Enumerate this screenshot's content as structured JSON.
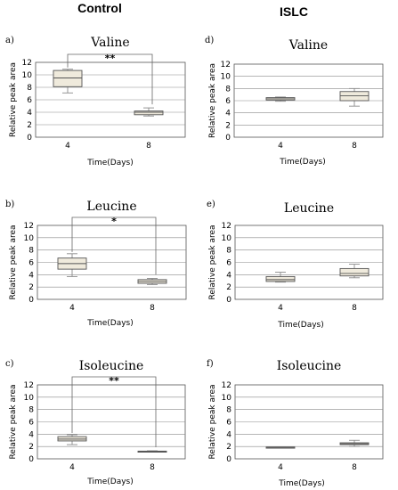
{
  "columns": [
    "Control",
    "ISLC"
  ],
  "chart_data": [
    {
      "type": "box",
      "panel": "a)",
      "title": "Valine",
      "ylabel": "Relative peak area",
      "xlabel": "Time(Days)",
      "ylim": [
        0,
        12
      ],
      "yticks": [
        0,
        2,
        4,
        6,
        8,
        10,
        12
      ],
      "categories": [
        "4",
        "8"
      ],
      "boxes": [
        {
          "min": 7.1,
          "q1": 8.1,
          "median": 9.5,
          "q3": 10.7,
          "max": 10.9
        },
        {
          "min": 3.4,
          "q1": 3.6,
          "median": 4.0,
          "q3": 4.2,
          "max": 4.7
        }
      ],
      "significance": "**"
    },
    {
      "type": "box",
      "panel": "d)",
      "title": "Valine",
      "ylabel": "Relative peak area",
      "xlabel": "Time(Days)",
      "ylim": [
        0,
        12
      ],
      "yticks": [
        0,
        2,
        4,
        6,
        8,
        10,
        12
      ],
      "categories": [
        "4",
        "8"
      ],
      "boxes": [
        {
          "min": 5.9,
          "q1": 6.1,
          "median": 6.3,
          "q3": 6.5,
          "max": 6.6
        },
        {
          "min": 5.1,
          "q1": 6.0,
          "median": 6.8,
          "q3": 7.5,
          "max": 8.0
        }
      ]
    },
    {
      "type": "box",
      "panel": "b)",
      "title": "Leucine",
      "ylabel": "Relative peak area",
      "xlabel": "Time(Days)",
      "ylim": [
        0,
        12
      ],
      "yticks": [
        0,
        2,
        4,
        6,
        8,
        10,
        12
      ],
      "categories": [
        "4",
        "8"
      ],
      "boxes": [
        {
          "min": 3.7,
          "q1": 4.9,
          "median": 5.8,
          "q3": 6.7,
          "max": 7.4
        },
        {
          "min": 2.4,
          "q1": 2.6,
          "median": 2.9,
          "q3": 3.2,
          "max": 3.4
        }
      ],
      "significance": "*"
    },
    {
      "type": "box",
      "panel": "e)",
      "title": "Leucine",
      "ylabel": "Relative peak area",
      "xlabel": "Time(Days)",
      "ylim": [
        0,
        12
      ],
      "yticks": [
        0,
        2,
        4,
        6,
        8,
        10,
        12
      ],
      "categories": [
        "4",
        "8"
      ],
      "boxes": [
        {
          "min": 2.8,
          "q1": 2.9,
          "median": 3.2,
          "q3": 3.7,
          "max": 4.4
        },
        {
          "min": 3.5,
          "q1": 3.8,
          "median": 4.2,
          "q3": 5.0,
          "max": 5.7
        }
      ]
    },
    {
      "type": "box",
      "panel": "c)",
      "title": "Isoleucine",
      "ylabel": "Relative peak area",
      "xlabel": "Time(Days)",
      "ylim": [
        0,
        12
      ],
      "yticks": [
        0,
        2,
        4,
        6,
        8,
        10,
        12
      ],
      "categories": [
        "4",
        "8"
      ],
      "boxes": [
        {
          "min": 2.3,
          "q1": 2.9,
          "median": 3.2,
          "q3": 3.6,
          "max": 3.9
        },
        {
          "min": 1.1,
          "q1": 1.15,
          "median": 1.2,
          "q3": 1.25,
          "max": 1.3
        }
      ],
      "significance": "**"
    },
    {
      "type": "box",
      "panel": "f)",
      "title": "Isoleucine",
      "ylabel": "Relative peak area",
      "xlabel": "Time(Days)",
      "ylim": [
        0,
        12
      ],
      "yticks": [
        0,
        2,
        4,
        6,
        8,
        10,
        12
      ],
      "categories": [
        "4",
        "8"
      ],
      "boxes": [
        {
          "min": 1.75,
          "q1": 1.8,
          "median": 1.85,
          "q3": 1.9,
          "max": 1.95
        },
        {
          "min": 2.0,
          "q1": 2.3,
          "median": 2.45,
          "q3": 2.6,
          "max": 3.0
        }
      ]
    }
  ]
}
